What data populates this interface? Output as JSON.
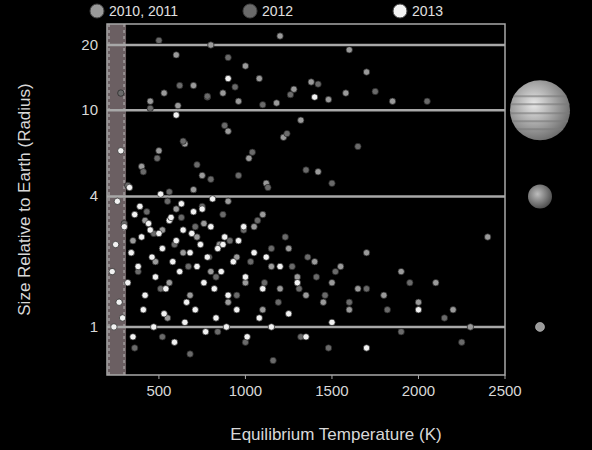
{
  "chart_data": {
    "type": "scatter",
    "x_label": "Equilibrium Temperature (K)",
    "y_label": "Size Relative to Earth (Radius)",
    "xlim": [
      200,
      2500
    ],
    "xticks": [
      500,
      1000,
      1500,
      2000,
      2500
    ],
    "ylim": [
      0.6,
      25
    ],
    "yticks": [
      1,
      4,
      10,
      20
    ],
    "log": "y",
    "grid": true,
    "legend": "top",
    "marker": "circle",
    "band": [
      200,
      310
    ],
    "series": [
      {
        "name": "2010, 2011",
        "color": "#9a9a9a",
        "x": [
          350,
          420,
          480,
          520,
          560,
          600,
          640,
          680,
          720,
          760,
          800,
          850,
          900,
          950,
          1000,
          1050,
          1100,
          1150,
          1200,
          1250,
          1300,
          1350,
          1400,
          1450,
          1500,
          1550,
          1600,
          1650,
          1700,
          1800,
          1900,
          2000,
          2100,
          2200,
          2400,
          450,
          530,
          610,
          700,
          780,
          870,
          960,
          1080,
          1180,
          1280,
          1380,
          1480,
          1580,
          1700,
          1850,
          400,
          500,
          650,
          750,
          900,
          1020,
          1120,
          1220,
          1320,
          1420,
          600,
          800,
          1000,
          1200,
          1600,
          700,
          900,
          1100,
          550,
          2300
        ],
        "values": [
          2.5,
          3.1,
          2.0,
          2.8,
          1.6,
          3.5,
          2.2,
          1.4,
          2.6,
          3.0,
          1.8,
          2.4,
          1.3,
          2.1,
          1.6,
          2.9,
          1.2,
          1.9,
          1.5,
          2.3,
          1.7,
          1.4,
          2.0,
          1.3,
          1.6,
          1.9,
          1.2,
          1.5,
          2.2,
          1.4,
          1.8,
          1.3,
          1.6,
          1.2,
          2.6,
          11,
          12,
          10.5,
          13,
          11.5,
          12,
          11,
          14,
          10.8,
          12.5,
          13.5,
          11.2,
          12,
          15,
          11,
          5.5,
          6.5,
          7.0,
          5.0,
          8.0,
          6.0,
          4.6,
          7.5,
          9.0,
          5.2,
          18,
          20,
          16,
          22,
          19,
          4.3,
          3.8,
          3.3,
          1.1,
          1.0
        ]
      },
      {
        "name": "2012",
        "color": "#6a6a6a",
        "x": [
          300,
          340,
          380,
          430,
          470,
          510,
          550,
          590,
          630,
          670,
          710,
          750,
          790,
          830,
          870,
          910,
          950,
          990,
          1030,
          1070,
          1110,
          1150,
          1190,
          1230,
          1270,
          1310,
          1360,
          1410,
          1460,
          1520,
          1600,
          1700,
          1820,
          1950,
          2150,
          320,
          410,
          490,
          560,
          640,
          720,
          800,
          880,
          960,
          1040,
          1130,
          1240,
          1350,
          1500,
          1650,
          280,
          450,
          620,
          780,
          940,
          1100,
          1260,
          1420,
          1750,
          2050,
          360,
          520,
          680,
          840,
          1000,
          1160,
          1320,
          1480,
          1900,
          2250,
          500,
          900
        ],
        "values": [
          3.0,
          2.2,
          1.8,
          3.4,
          2.7,
          1.5,
          3.8,
          2.4,
          3.2,
          1.9,
          2.9,
          3.6,
          2.1,
          1.7,
          3.3,
          2.5,
          1.4,
          2.8,
          2.0,
          3.1,
          1.6,
          2.3,
          1.3,
          2.6,
          1.9,
          1.5,
          2.1,
          1.7,
          1.4,
          1.8,
          1.3,
          1.5,
          1.2,
          1.6,
          1.1,
          4.5,
          5.2,
          6.0,
          4.2,
          7.2,
          5.6,
          4.8,
          8.5,
          5.0,
          6.4,
          4.4,
          7.8,
          5.3,
          4.6,
          6.8,
          12,
          10.2,
          13,
          11.6,
          12.8,
          10.6,
          11.8,
          13.2,
          12.2,
          11,
          0.8,
          0.9,
          0.75,
          0.95,
          0.85,
          0.7,
          0.9,
          0.8,
          0.95,
          0.85,
          21,
          17.5
        ]
      },
      {
        "name": "2013",
        "color": "#f2f2f2",
        "x": [
          230,
          250,
          270,
          300,
          320,
          340,
          360,
          380,
          400,
          420,
          440,
          460,
          480,
          500,
          520,
          540,
          560,
          580,
          600,
          620,
          640,
          660,
          680,
          700,
          720,
          740,
          760,
          780,
          800,
          820,
          840,
          860,
          880,
          900,
          930,
          960,
          1000,
          1050,
          1100,
          1200,
          240,
          290,
          350,
          410,
          470,
          530,
          590,
          650,
          710,
          770,
          830,
          890,
          950,
          1010,
          1080,
          1150,
          1250,
          1350,
          1500,
          1700,
          260,
          330,
          390,
          450,
          510,
          570,
          630,
          690,
          750,
          810,
          870,
          990,
          1120,
          1300,
          2000,
          280,
          600,
          900,
          1400
        ],
        "values": [
          1.8,
          2.4,
          1.3,
          2.9,
          1.6,
          2.2,
          3.3,
          1.9,
          2.6,
          1.4,
          3.0,
          2.1,
          1.7,
          2.7,
          2.3,
          1.5,
          3.1,
          2.0,
          2.5,
          1.8,
          2.8,
          1.3,
          2.2,
          3.4,
          1.9,
          2.4,
          1.6,
          2.1,
          2.9,
          1.5,
          2.3,
          1.8,
          2.6,
          1.4,
          2.0,
          2.5,
          1.7,
          2.2,
          1.5,
          1.9,
          1.0,
          1.1,
          0.9,
          1.2,
          1.0,
          1.15,
          0.85,
          1.05,
          1.2,
          0.95,
          1.1,
          1.0,
          1.2,
          0.9,
          1.1,
          1.0,
          1.15,
          0.9,
          1.05,
          0.8,
          3.8,
          4.4,
          3.6,
          2.8,
          4.1,
          3.2,
          3.7,
          2.7,
          3.5,
          3.9,
          2.4,
          2.9,
          2.1,
          1.6,
          1.2,
          6.5,
          9.5,
          14,
          11.5
        ]
      }
    ]
  }
}
